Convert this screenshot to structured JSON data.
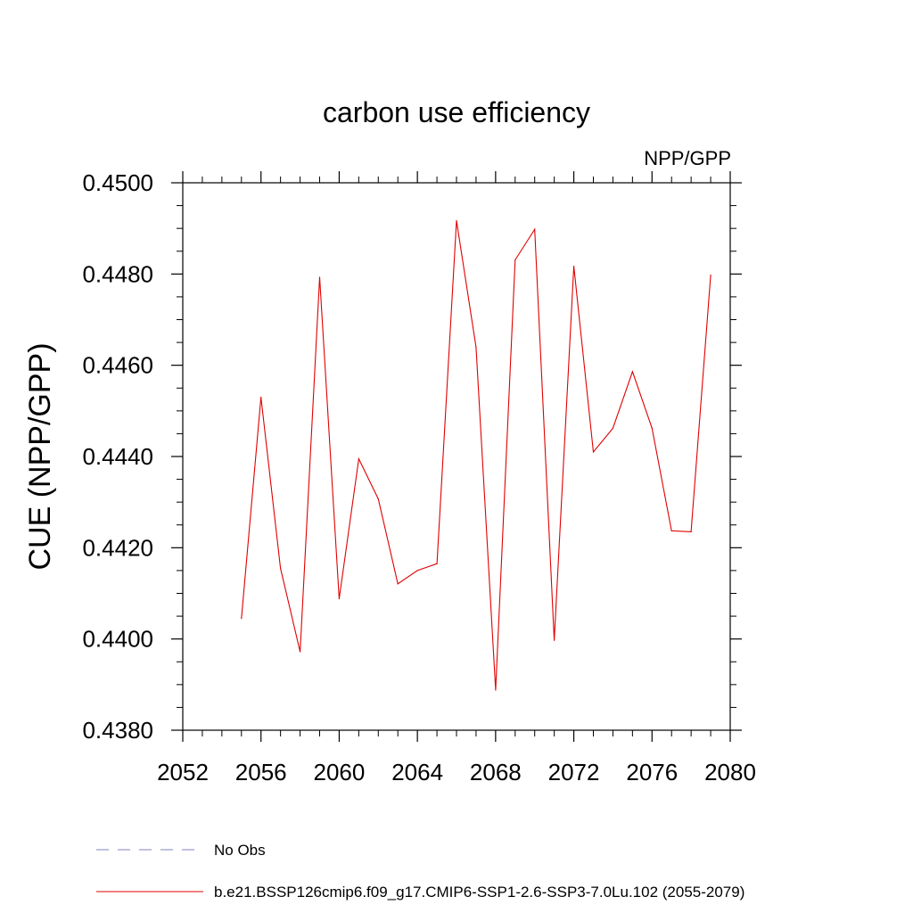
{
  "chart_data": {
    "type": "line",
    "title": "carbon use efficiency",
    "subtitle": "NPP/GPP",
    "xlabel": "",
    "ylabel": "CUE  (NPP/GPP)",
    "xlim": [
      2052,
      2080
    ],
    "ylim": [
      0.438,
      0.45
    ],
    "x_ticks": [
      2052,
      2056,
      2060,
      2064,
      2068,
      2072,
      2076,
      2080
    ],
    "x_tick_labels": [
      "2052",
      "2056",
      "2060",
      "2064",
      "2068",
      "2072",
      "2076",
      "2080"
    ],
    "y_ticks": [
      0.438,
      0.44,
      0.442,
      0.444,
      0.446,
      0.448,
      0.45
    ],
    "y_tick_labels": [
      "0.4380",
      "0.4400",
      "0.4420",
      "0.4440",
      "0.4460",
      "0.4480",
      "0.4500"
    ],
    "grid": false,
    "legend_position": "bottom",
    "series": [
      {
        "name": "No Obs",
        "color": "#8080c0",
        "dash": "dashed",
        "x": [],
        "y": []
      },
      {
        "name": "b.e21.BSSP126cmip6.f09_g17.CMIP6-SSP1-2.6-SSP3-7.0Lu.102 (2055-2079)",
        "color": "#e00000",
        "dash": "solid",
        "x": [
          2055,
          2056,
          2057,
          2058,
          2059,
          2060,
          2061,
          2062,
          2063,
          2064,
          2065,
          2066,
          2067,
          2068,
          2069,
          2070,
          2071,
          2072,
          2073,
          2074,
          2075,
          2076,
          2077,
          2078,
          2079
        ],
        "y": [
          0.44045,
          0.4453,
          0.44155,
          0.43972,
          0.44793,
          0.44088,
          0.44395,
          0.44307,
          0.44121,
          0.4415,
          0.44165,
          0.44917,
          0.4464,
          0.43888,
          0.44831,
          0.44898,
          0.43997,
          0.44817,
          0.4441,
          0.44462,
          0.44586,
          0.44462,
          0.44237,
          0.44235,
          0.44798
        ]
      }
    ]
  }
}
